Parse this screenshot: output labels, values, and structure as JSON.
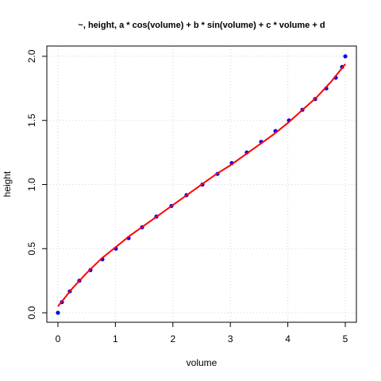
{
  "chart_data": {
    "type": "scatter",
    "title": "~, height, a * cos(volume) + b * sin(volume) + c * volume + d",
    "x_label": "volume",
    "y_label": "height",
    "xlim": [
      -0.193,
      5.193
    ],
    "ylim": [
      -0.074,
      2.08
    ],
    "xticks": [
      0,
      1,
      2,
      3,
      4,
      5
    ],
    "yticks": [
      {
        "value": 0,
        "label": "0.0"
      },
      {
        "value": 0.5,
        "label": "0.5"
      },
      {
        "value": 1,
        "label": "1.0"
      },
      {
        "value": 1.5,
        "label": "1.5"
      },
      {
        "value": 2,
        "label": "2.0"
      }
    ],
    "grid": true,
    "series": [
      {
        "mode": "points",
        "color": "#0000ff",
        "x": [
          0,
          0.069,
          0.207,
          0.373,
          0.566,
          0.773,
          1.008,
          1.23,
          1.464,
          1.713,
          1.975,
          2.237,
          2.514,
          2.776,
          3.025,
          3.287,
          3.536,
          3.785,
          4.02,
          4.254,
          4.475,
          4.669,
          4.834,
          4.945,
          5.0
        ],
        "values": [
          0,
          0.083,
          0.167,
          0.25,
          0.333,
          0.417,
          0.5,
          0.583,
          0.667,
          0.75,
          0.833,
          0.917,
          1.0,
          1.083,
          1.167,
          1.25,
          1.333,
          1.417,
          1.5,
          1.583,
          1.667,
          1.75,
          1.833,
          1.917,
          2.0
        ]
      },
      {
        "mode": "line",
        "color": "#ff0000",
        "x": [
          0,
          0.25,
          0.5,
          0.75,
          1,
          1.25,
          1.5,
          1.75,
          2,
          2.25,
          2.5,
          2.75,
          3,
          3.25,
          3.5,
          3.75,
          4,
          4.25,
          4.5,
          4.75,
          5
        ],
        "values": [
          0.05,
          0.19,
          0.31,
          0.42,
          0.51,
          0.6,
          0.68,
          0.76,
          0.84,
          0.92,
          1.0,
          1.08,
          1.15,
          1.23,
          1.31,
          1.39,
          1.48,
          1.58,
          1.68,
          1.8,
          1.94
        ]
      }
    ]
  }
}
